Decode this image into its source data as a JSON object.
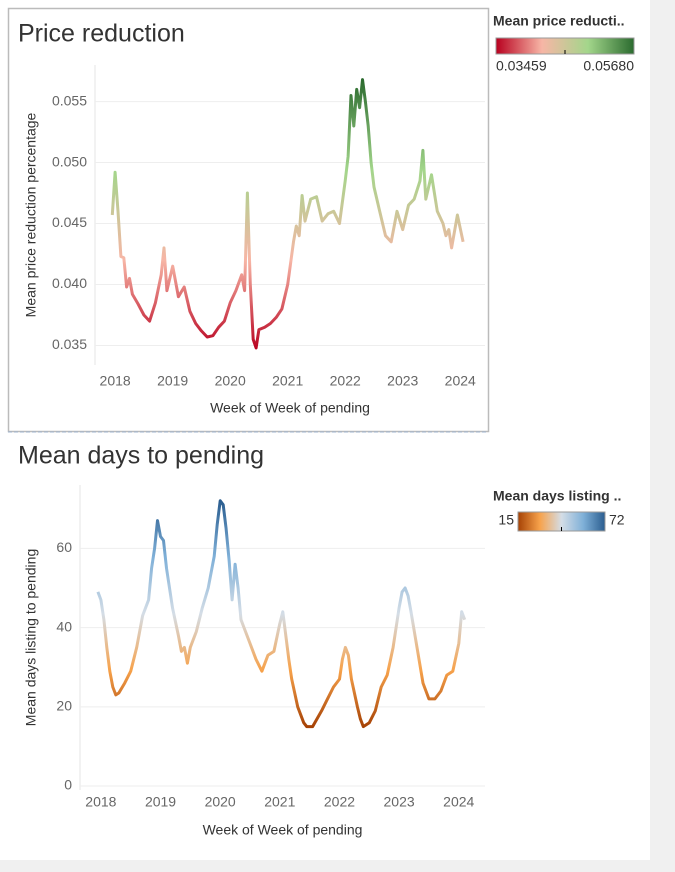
{
  "chart_data": [
    {
      "type": "line",
      "title": "Price reduction",
      "x_label": "Week of Week of pending",
      "y_label": "Mean price reduction percentage",
      "x": [
        2017.95,
        2018.0,
        2018.05,
        2018.1,
        2018.15,
        2018.2,
        2018.25,
        2018.3,
        2018.4,
        2018.5,
        2018.6,
        2018.7,
        2018.8,
        2018.85,
        2018.9,
        2019.0,
        2019.1,
        2019.2,
        2019.3,
        2019.4,
        2019.5,
        2019.6,
        2019.7,
        2019.8,
        2019.9,
        2020.0,
        2020.1,
        2020.2,
        2020.25,
        2020.3,
        2020.35,
        2020.4,
        2020.45,
        2020.5,
        2020.6,
        2020.7,
        2020.8,
        2020.9,
        2021.0,
        2021.1,
        2021.15,
        2021.2,
        2021.25,
        2021.3,
        2021.4,
        2021.5,
        2021.6,
        2021.7,
        2021.8,
        2021.9,
        2022.0,
        2022.05,
        2022.1,
        2022.15,
        2022.2,
        2022.25,
        2022.3,
        2022.35,
        2022.4,
        2022.45,
        2022.5,
        2022.6,
        2022.7,
        2022.8,
        2022.9,
        2023.0,
        2023.1,
        2023.2,
        2023.3,
        2023.35,
        2023.4,
        2023.5,
        2023.6,
        2023.7,
        2023.75,
        2023.8,
        2023.85,
        2023.95,
        2024.05
      ],
      "values": [
        0.0457,
        0.0492,
        0.046,
        0.0423,
        0.0422,
        0.0398,
        0.0405,
        0.0392,
        0.0384,
        0.0375,
        0.037,
        0.0385,
        0.0408,
        0.043,
        0.0395,
        0.0415,
        0.039,
        0.0398,
        0.0378,
        0.0368,
        0.0362,
        0.0357,
        0.0358,
        0.0365,
        0.037,
        0.0385,
        0.0395,
        0.0408,
        0.0395,
        0.0475,
        0.04,
        0.0355,
        0.0348,
        0.0363,
        0.0365,
        0.0368,
        0.0373,
        0.038,
        0.04,
        0.0435,
        0.0448,
        0.044,
        0.0473,
        0.0452,
        0.047,
        0.0472,
        0.0452,
        0.0458,
        0.046,
        0.045,
        0.0485,
        0.0505,
        0.0555,
        0.053,
        0.056,
        0.0545,
        0.0568,
        0.055,
        0.053,
        0.05,
        0.048,
        0.046,
        0.044,
        0.0435,
        0.046,
        0.0445,
        0.0465,
        0.047,
        0.0485,
        0.051,
        0.047,
        0.049,
        0.046,
        0.045,
        0.044,
        0.0445,
        0.043,
        0.0457,
        0.0435
      ],
      "xlim": [
        2017.65,
        2024.43
      ],
      "xticks": [
        2018,
        2019,
        2020,
        2021,
        2022,
        2023,
        2024
      ],
      "ylim": [
        0.0334,
        0.058
      ],
      "yticks": [
        0.035,
        {
          "value": 0.04,
          "label": "0.040"
        },
        0.045,
        {
          "value": 0.05,
          "label": "0.050"
        },
        0.055
      ],
      "grid": true,
      "color_legend": {
        "title": "Mean price reducti..",
        "range": [
          0.03459,
          {
            "value": 0.0568,
            "label": "0.05680"
          }
        ],
        "palette": [
          "#b8001f",
          "#f7b6a6",
          "#a3d68b",
          "#2b6b2f"
        ]
      }
    },
    {
      "type": "line",
      "title": "Mean days to pending",
      "x_label": "Week of Week of pending",
      "y_label": "Mean days listing to pending",
      "x": [
        2017.95,
        2018.0,
        2018.05,
        2018.1,
        2018.15,
        2018.2,
        2018.25,
        2018.3,
        2018.4,
        2018.5,
        2018.6,
        2018.7,
        2018.8,
        2018.85,
        2018.9,
        2018.95,
        2019.0,
        2019.05,
        2019.1,
        2019.2,
        2019.3,
        2019.35,
        2019.4,
        2019.45,
        2019.5,
        2019.6,
        2019.7,
        2019.8,
        2019.9,
        2019.95,
        2020.0,
        2020.05,
        2020.1,
        2020.15,
        2020.2,
        2020.25,
        2020.3,
        2020.35,
        2020.4,
        2020.5,
        2020.6,
        2020.7,
        2020.8,
        2020.9,
        2021.0,
        2021.05,
        2021.1,
        2021.15,
        2021.2,
        2021.3,
        2021.4,
        2021.45,
        2021.55,
        2021.7,
        2021.8,
        2021.9,
        2022.0,
        2022.05,
        2022.1,
        2022.15,
        2022.2,
        2022.3,
        2022.35,
        2022.4,
        2022.5,
        2022.6,
        2022.7,
        2022.8,
        2022.9,
        2023.0,
        2023.05,
        2023.1,
        2023.15,
        2023.2,
        2023.3,
        2023.4,
        2023.5,
        2023.6,
        2023.7,
        2023.8,
        2023.9,
        2024.0,
        2024.05,
        2024.1
      ],
      "values": [
        49,
        47,
        42,
        35,
        29,
        25,
        23,
        23.5,
        26,
        29,
        35,
        43,
        47,
        55,
        60,
        67,
        63,
        62,
        55,
        45,
        38,
        34,
        35,
        31,
        35,
        39,
        45,
        50,
        58,
        66,
        72,
        71,
        65,
        57,
        47,
        56,
        50,
        42,
        40,
        36,
        32,
        29,
        33,
        34,
        41,
        44,
        38,
        32,
        27,
        20,
        16,
        15,
        15,
        19,
        22,
        25,
        27,
        32,
        35,
        33,
        27,
        20,
        17,
        15,
        16,
        19,
        25,
        28,
        35,
        45,
        49,
        50,
        48,
        44,
        35,
        26,
        22,
        22,
        24,
        28,
        29,
        36,
        44,
        42
      ],
      "xlim": [
        2017.65,
        2024.44
      ],
      "xticks": [
        2018,
        2019,
        2020,
        2021,
        2022,
        2023,
        2024
      ],
      "ylim": [
        -1,
        76
      ],
      "yticks": [
        0,
        20,
        40,
        60
      ],
      "grid": true,
      "color_legend": {
        "title": "Mean days listing ..",
        "range": [
          15,
          72
        ],
        "palette": [
          "#a64205",
          "#f7a24b",
          "#d4dde6",
          "#7fb0d8",
          "#2a5d8f"
        ]
      }
    }
  ]
}
